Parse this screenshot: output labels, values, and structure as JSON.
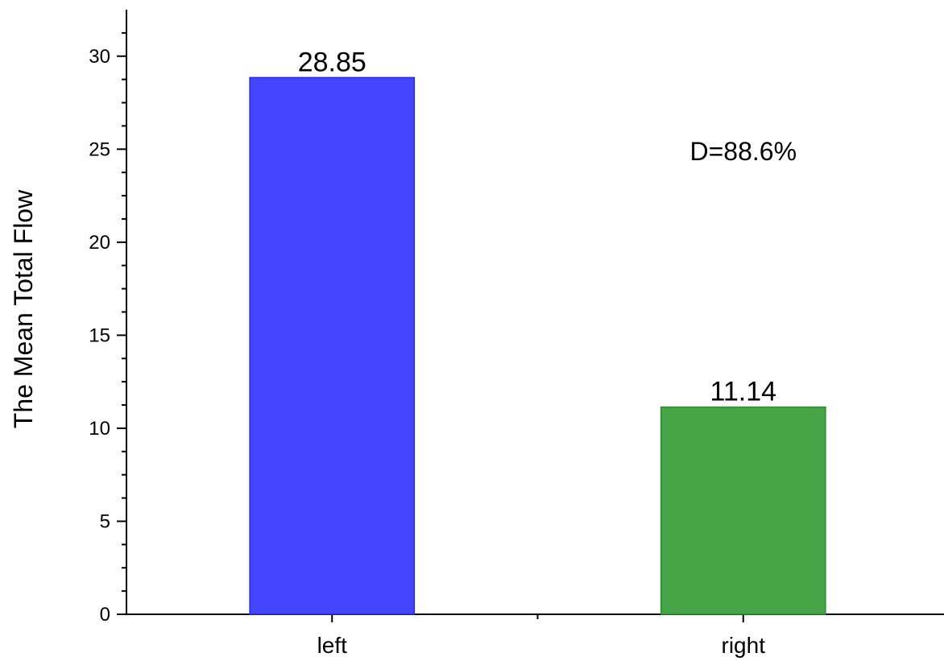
{
  "chart_data": {
    "type": "bar",
    "title": "",
    "xlabel": "",
    "ylabel": "The Mean Total Flow",
    "categories": [
      "left",
      "right"
    ],
    "values": [
      28.85,
      11.14
    ],
    "value_labels": [
      "28.85",
      "11.14"
    ],
    "colors": [
      "#4545ff",
      "#46a546"
    ],
    "ylim": [
      0,
      32.5
    ],
    "yticks": [
      0,
      5,
      10,
      15,
      20,
      25,
      30
    ],
    "ytick_labels": [
      "0",
      "5",
      "10",
      "15",
      "20",
      "25",
      "30"
    ],
    "y_minor_step": 1.25,
    "grid": false,
    "legend": "none",
    "annotations": [
      {
        "text": "D=88.6%",
        "x": 1.5,
        "y": 24.4
      }
    ]
  }
}
